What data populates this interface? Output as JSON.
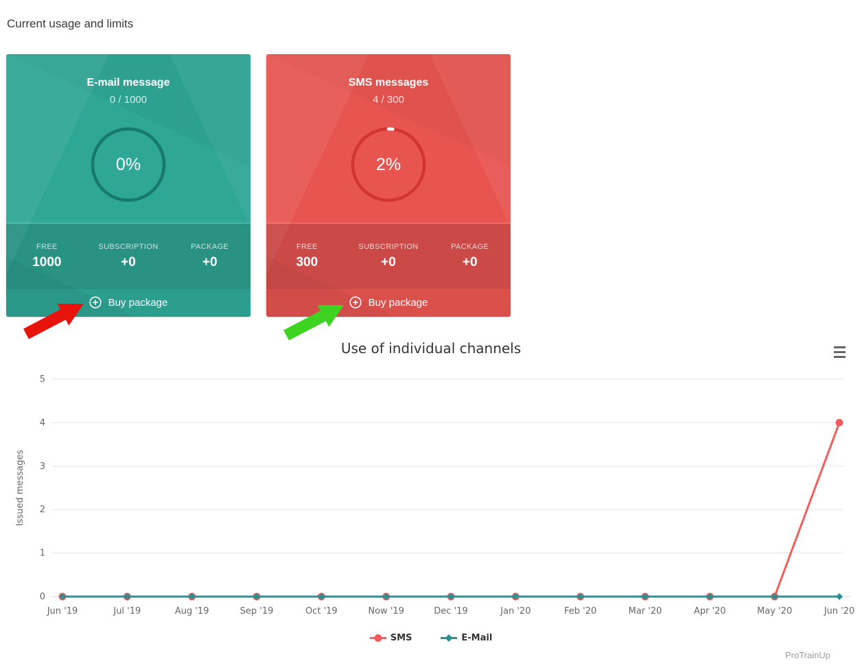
{
  "page": {
    "heading": "Current usage and limits",
    "watermark": "ProTrainUp"
  },
  "cards": [
    {
      "title": "E-mail message",
      "usage": "0 / 1000",
      "percent": 0,
      "percent_label": "0%",
      "color": "#2fa796",
      "ring_color": "#17796b",
      "arrow_color": "#e8130b",
      "stats": [
        {
          "label": "FREE",
          "value": "1000"
        },
        {
          "label": "SUBSCRIPTION",
          "value": "+0"
        },
        {
          "label": "PACKAGE",
          "value": "+0"
        }
      ],
      "buy_label": "Buy package"
    },
    {
      "title": "SMS messages",
      "usage": "4 / 300",
      "percent": 2,
      "percent_label": "2%",
      "color": "#e85551",
      "ring_color": "#d23434",
      "arrow_color": "#3ed321",
      "stats": [
        {
          "label": "FREE",
          "value": "300"
        },
        {
          "label": "SUBSCRIPTION",
          "value": "+0"
        },
        {
          "label": "PACKAGE",
          "value": "+0"
        }
      ],
      "buy_label": "Buy package"
    }
  ],
  "chart_data": {
    "type": "line",
    "title": "Use of individual channels",
    "ylabel": "Issued messages",
    "xlabel": "",
    "categories": [
      "Jun '19",
      "Jul '19",
      "Aug '19",
      "Sep '19",
      "Oct '19",
      "Now '19",
      "Dec '19",
      "Jan '20",
      "Feb '20",
      "Mar '20",
      "Apr '20",
      "May '20",
      "Jun '20"
    ],
    "series": [
      {
        "name": "SMS",
        "color": "#f45b5b",
        "marker": "circle",
        "values": [
          0,
          0,
          0,
          0,
          0,
          0,
          0,
          0,
          0,
          0,
          0,
          0,
          4
        ]
      },
      {
        "name": "E-Mail",
        "color": "#2b908f",
        "marker": "diamond",
        "values": [
          0,
          0,
          0,
          0,
          0,
          0,
          0,
          0,
          0,
          0,
          0,
          0,
          0
        ]
      }
    ],
    "ylim": [
      0,
      5
    ],
    "yticks": [
      0,
      1,
      2,
      3,
      4,
      5
    ],
    "grid": true,
    "legend_position": "bottom",
    "axis_label_color": "#666666",
    "grid_color": "#e6e6e6",
    "axis_line_color": "#ccd6eb"
  }
}
